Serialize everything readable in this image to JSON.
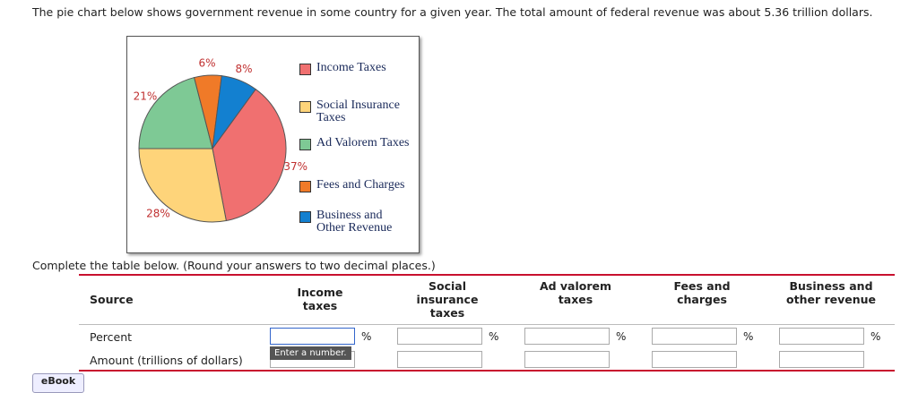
{
  "instructions": "The pie chart below shows government revenue in some country for a given year. The total amount of federal revenue was about 5.36 trillion dollars.",
  "chart_data": {
    "type": "pie",
    "categories": [
      "Income Taxes",
      "Social Insurance Taxes",
      "Ad Valorem Taxes",
      "Fees and Charges",
      "Business and Other Revenue"
    ],
    "values": [
      37,
      28,
      21,
      6,
      8
    ],
    "value_labels": [
      "37%",
      "28%",
      "21%",
      "6%",
      "8%"
    ],
    "colors": [
      "#f07070",
      "#fed47a",
      "#7ec995",
      "#f07a28",
      "#1380d0"
    ]
  },
  "prompt": "Complete the table below. (Round your answers to two decimal places.)",
  "table": {
    "headers": [
      "Source",
      "Income taxes",
      "Social insurance taxes",
      "Ad valorem taxes",
      "Fees and charges",
      "Business and other revenue"
    ],
    "rows": [
      {
        "label": "Percent",
        "unit": "%"
      },
      {
        "label": "Amount (trillions of dollars)"
      }
    ]
  },
  "tooltip": "Enter a number.",
  "ebook": "eBook"
}
